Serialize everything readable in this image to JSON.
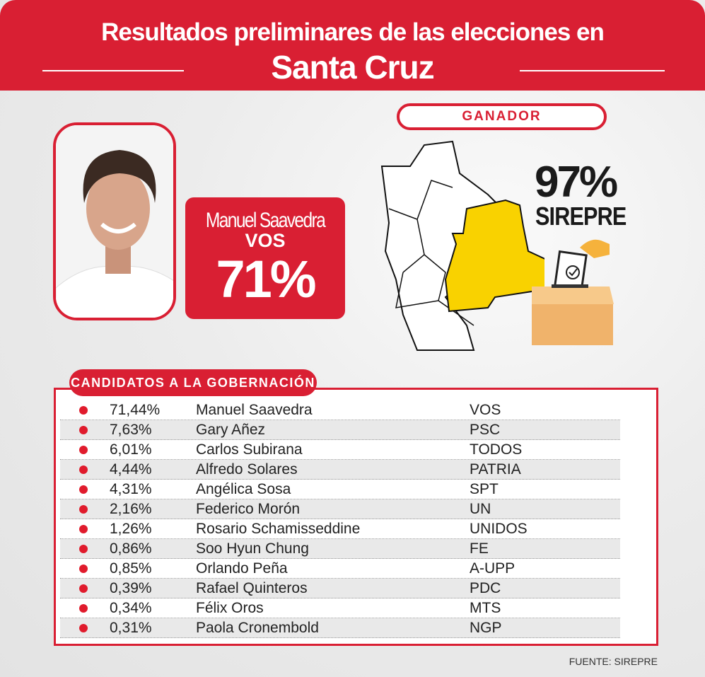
{
  "header": {
    "title_line1": "Resultados preliminares de las elecciones en",
    "title_line2": "Santa Cruz"
  },
  "winner": {
    "name": "Manuel Saavedra",
    "party": "VOS",
    "percent": "71%"
  },
  "ganador_label": "GANADOR",
  "count_percent": "97%",
  "count_source": "SIREPRE",
  "colors": {
    "red": "#d91f33",
    "map_highlight": "#f9d200"
  },
  "table": {
    "title": "CANDIDATOS A LA GOBERNACIÓN",
    "rows": [
      {
        "percent": "71,44%",
        "name": "Manuel Saavedra",
        "party": "VOS"
      },
      {
        "percent": "7,63%",
        "name": "Gary Añez",
        "party": "PSC"
      },
      {
        "percent": "6,01%",
        "name": "Carlos Subirana",
        "party": "TODOS"
      },
      {
        "percent": "4,44%",
        "name": "Alfredo Solares",
        "party": "PATRIA"
      },
      {
        "percent": "4,31%",
        "name": "Angélica Sosa",
        "party": "SPT"
      },
      {
        "percent": "2,16%",
        "name": "Federico Morón",
        "party": "UN"
      },
      {
        "percent": "1,26%",
        "name": "Rosario Schamisseddine",
        "party": "UNIDOS"
      },
      {
        "percent": "0,86%",
        "name": "Soo Hyun Chung",
        "party": "FE"
      },
      {
        "percent": "0,85%",
        "name": "Orlando Peña",
        "party": "A-UPP"
      },
      {
        "percent": "0,39%",
        "name": "Rafael Quinteros",
        "party": "PDC"
      },
      {
        "percent": "0,34%",
        "name": "Félix Oros",
        "party": "MTS"
      },
      {
        "percent": "0,31%",
        "name": "Paola Cronembold",
        "party": "NGP"
      }
    ]
  },
  "source": "FUENTE: SIREPRE"
}
